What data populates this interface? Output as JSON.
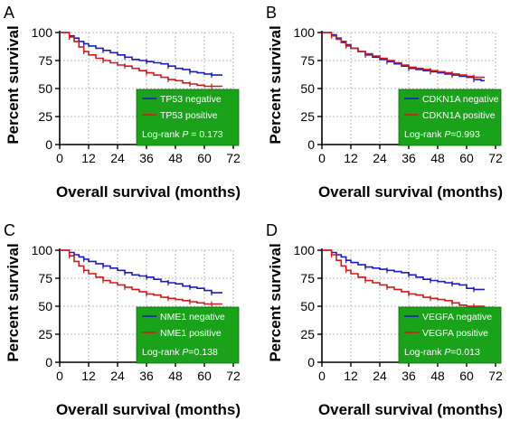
{
  "figure": {
    "panels": [
      "A",
      "B",
      "C",
      "D"
    ]
  },
  "colors": {
    "negative": "#1c1cc4",
    "positive": "#d11a1a",
    "legend_bg": "#1aa31a",
    "grid": "#b8b8b8",
    "axis": "#000000"
  },
  "chart_data": [
    {
      "type": "line",
      "panel_label": "A",
      "xlabel": "Overall survival (months)",
      "ylabel": "Percent survival",
      "xlim": [
        0,
        72
      ],
      "ylim": [
        0,
        100
      ],
      "x_ticks": [
        "0",
        "12",
        "24",
        "36",
        "48",
        "60",
        "72"
      ],
      "y_ticks": [
        "0",
        "25",
        "50",
        "75",
        "100"
      ],
      "grid": true,
      "legend_position": "bottom-right",
      "legend_fill": "green",
      "legend_items": [
        "TP53 negative",
        "TP53 positive"
      ],
      "annotation": {
        "prefix": "Log-rank ",
        "p": "P",
        "suffix": " = 0.173"
      },
      "series": [
        {
          "name": "TP53 negative",
          "color": "#1c1cc4",
          "x": [
            2,
            4,
            6,
            8,
            10,
            12,
            15,
            18,
            21,
            24,
            27,
            30,
            33,
            36,
            39,
            42,
            45,
            48,
            51,
            54,
            57,
            60,
            63,
            66
          ],
          "y": [
            100,
            97,
            95,
            92,
            90,
            88,
            86,
            84,
            82,
            80,
            78,
            76,
            75,
            74,
            73,
            72,
            70,
            68,
            67,
            65,
            64,
            63,
            62,
            62
          ]
        },
        {
          "name": "TP53 positive",
          "color": "#d11a1a",
          "x": [
            2,
            4,
            6,
            8,
            10,
            12,
            15,
            18,
            21,
            24,
            27,
            30,
            33,
            36,
            39,
            42,
            45,
            48,
            51,
            54,
            57,
            60,
            63,
            66
          ],
          "y": [
            100,
            96,
            92,
            87,
            83,
            80,
            77,
            75,
            73,
            71,
            70,
            68,
            66,
            64,
            62,
            60,
            58,
            57,
            55,
            54,
            53,
            52,
            52,
            52
          ]
        }
      ]
    },
    {
      "type": "line",
      "panel_label": "B",
      "xlabel": "Overall survival (months)",
      "ylabel": "Percent survival",
      "xlim": [
        0,
        72
      ],
      "ylim": [
        0,
        100
      ],
      "x_ticks": [
        "0",
        "12",
        "24",
        "36",
        "48",
        "60",
        "72"
      ],
      "y_ticks": [
        "0",
        "25",
        "50",
        "75",
        "100"
      ],
      "grid": true,
      "legend_position": "bottom-right",
      "legend_fill": "green",
      "legend_items": [
        "CDKN1A negative",
        "CDKN1A positive"
      ],
      "annotation": {
        "prefix": "Log-rank ",
        "p": "P",
        "suffix": "=0.993"
      },
      "series": [
        {
          "name": "CDKN1A negative",
          "color": "#1c1cc4",
          "x": [
            2,
            4,
            6,
            8,
            10,
            12,
            15,
            18,
            21,
            24,
            27,
            30,
            33,
            36,
            39,
            42,
            45,
            48,
            51,
            54,
            57,
            60,
            63,
            66
          ],
          "y": [
            100,
            98,
            95,
            92,
            89,
            86,
            83,
            80,
            78,
            76,
            74,
            72,
            70,
            68,
            67,
            66,
            65,
            64,
            63,
            62,
            61,
            60,
            58,
            57
          ]
        },
        {
          "name": "CDKN1A positive",
          "color": "#d11a1a",
          "x": [
            2,
            4,
            6,
            8,
            10,
            12,
            15,
            18,
            21,
            24,
            27,
            30,
            33,
            36,
            39,
            42,
            45,
            48,
            51,
            54,
            57,
            60,
            63,
            66
          ],
          "y": [
            100,
            97,
            94,
            91,
            88,
            86,
            83,
            81,
            79,
            77,
            75,
            73,
            71,
            69,
            68,
            67,
            66,
            65,
            64,
            63,
            62,
            61,
            60,
            60
          ]
        }
      ]
    },
    {
      "type": "line",
      "panel_label": "C",
      "xlabel": "Overall survival (months)",
      "ylabel": "Percent survival",
      "xlim": [
        0,
        72
      ],
      "ylim": [
        0,
        100
      ],
      "x_ticks": [
        "0",
        "12",
        "24",
        "36",
        "48",
        "60",
        "72"
      ],
      "y_ticks": [
        "0",
        "25",
        "50",
        "75",
        "100"
      ],
      "grid": true,
      "legend_position": "bottom-right",
      "legend_fill": "green",
      "legend_items": [
        "NME1 negative",
        "NME1 positive"
      ],
      "annotation": {
        "prefix": "Log-rank ",
        "p": "P",
        "suffix": "=0.138"
      },
      "series": [
        {
          "name": "NME1 negative",
          "color": "#1c1cc4",
          "x": [
            2,
            4,
            6,
            8,
            10,
            12,
            15,
            18,
            21,
            24,
            27,
            30,
            33,
            36,
            39,
            42,
            45,
            48,
            51,
            54,
            57,
            60,
            63,
            66
          ],
          "y": [
            100,
            98,
            96,
            94,
            92,
            90,
            88,
            86,
            84,
            82,
            80,
            78,
            77,
            76,
            74,
            72,
            71,
            70,
            68,
            67,
            66,
            64,
            62,
            62
          ]
        },
        {
          "name": "NME1 positive",
          "color": "#d11a1a",
          "x": [
            2,
            4,
            6,
            8,
            10,
            12,
            15,
            18,
            21,
            24,
            27,
            30,
            33,
            36,
            39,
            42,
            45,
            48,
            51,
            54,
            57,
            60,
            63,
            66
          ],
          "y": [
            100,
            95,
            90,
            86,
            82,
            79,
            76,
            73,
            71,
            69,
            67,
            65,
            63,
            61,
            60,
            58,
            57,
            56,
            55,
            54,
            53,
            52,
            52,
            52
          ]
        }
      ]
    },
    {
      "type": "line",
      "panel_label": "D",
      "xlabel": "Overall survival (months)",
      "ylabel": "Percent survival",
      "xlim": [
        0,
        72
      ],
      "ylim": [
        0,
        100
      ],
      "x_ticks": [
        "0",
        "12",
        "24",
        "36",
        "48",
        "60",
        "72"
      ],
      "y_ticks": [
        "0",
        "25",
        "50",
        "75",
        "100"
      ],
      "grid": true,
      "legend_position": "bottom-right",
      "legend_fill": "green",
      "legend_items": [
        "VEGFA negative",
        "VEGFA positive"
      ],
      "annotation": {
        "prefix": "Log-rank ",
        "p": "P",
        "suffix": "=0.013"
      },
      "series": [
        {
          "name": "VEGFA negative",
          "color": "#1c1cc4",
          "x": [
            2,
            4,
            6,
            8,
            10,
            12,
            15,
            18,
            21,
            24,
            27,
            30,
            33,
            36,
            39,
            42,
            45,
            48,
            51,
            54,
            57,
            60,
            63,
            66
          ],
          "y": [
            100,
            98,
            96,
            94,
            91,
            89,
            87,
            85,
            84,
            83,
            82,
            81,
            80,
            78,
            76,
            74,
            73,
            72,
            71,
            70,
            69,
            66,
            65,
            65
          ]
        },
        {
          "name": "VEGFA positive",
          "color": "#d11a1a",
          "x": [
            2,
            4,
            6,
            8,
            10,
            12,
            15,
            18,
            21,
            24,
            27,
            30,
            33,
            36,
            39,
            42,
            45,
            48,
            51,
            54,
            57,
            60,
            63,
            66
          ],
          "y": [
            100,
            96,
            91,
            86,
            82,
            79,
            76,
            73,
            71,
            69,
            67,
            65,
            63,
            61,
            60,
            58,
            57,
            56,
            55,
            53,
            51,
            50,
            50,
            50
          ]
        }
      ]
    }
  ]
}
